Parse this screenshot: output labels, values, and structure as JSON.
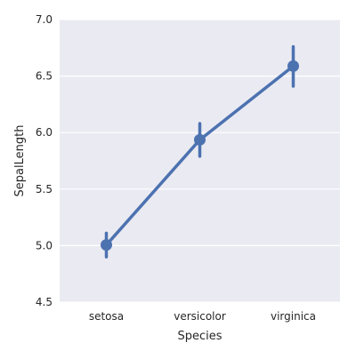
{
  "chart_data": {
    "type": "line",
    "xlabel": "Species",
    "ylabel": "SepalLength",
    "categories": [
      "setosa",
      "versicolor",
      "virginica"
    ],
    "series": [
      {
        "values": [
          5.006,
          5.936,
          6.588
        ],
        "ci_low": [
          4.9,
          5.79,
          6.41
        ],
        "ci_high": [
          5.11,
          6.08,
          6.76
        ]
      }
    ],
    "ylim": [
      4.5,
      7.0
    ],
    "yticks": [
      "4.5",
      "5.0",
      "5.5",
      "6.0",
      "6.5",
      "7.0"
    ],
    "grid": true,
    "legend": "none"
  },
  "colors": {
    "background": "#eaeaf2",
    "grid": "#ffffff",
    "series": "#4c72b0"
  }
}
